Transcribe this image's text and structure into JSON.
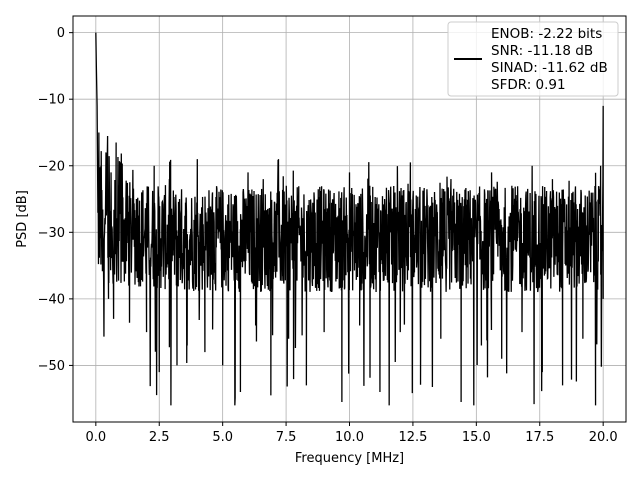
{
  "chart_data": {
    "type": "line",
    "title": "",
    "xlabel": "Frequency [MHz]",
    "ylabel": "PSD [dB]",
    "xlim": [
      -0.9,
      20.9
    ],
    "ylim": [
      -58.5,
      2.5
    ],
    "grid": true,
    "legend_position": "top-right",
    "x_ticks": [
      0,
      2.5,
      5,
      7.5,
      10,
      12.5,
      15,
      17.5,
      20
    ],
    "x_tick_labels": [
      "0.0",
      "2.5",
      "5.0",
      "7.5",
      "10.0",
      "12.5",
      "15.0",
      "17.5",
      "20.0"
    ],
    "y_ticks": [
      0,
      -10,
      -20,
      -30,
      -40,
      -50
    ],
    "y_tick_labels": [
      "0",
      "−10",
      "−20",
      "−30",
      "−40",
      "−50"
    ],
    "series": [
      {
        "color": "#000000",
        "note": "Noise-like PSD trace from 0 to 20 MHz; peak near 0 dB at 0 MHz, baseline around -30 dB, upper envelope ~-20 dB, dips to ~-55 dB, spike to ~-11 dB at 20 MHz",
        "x": [
          0.0,
          0.02,
          0.05,
          0.08,
          0.12,
          0.2,
          0.3,
          0.4,
          0.5,
          0.6,
          0.7,
          0.8,
          1.0,
          1.3,
          1.6,
          2.0,
          2.3,
          2.5,
          2.6,
          2.9,
          3.2,
          3.3,
          3.6,
          4.0,
          4.3,
          4.6,
          5.0,
          5.4,
          5.7,
          6.0,
          6.3,
          6.6,
          6.9,
          7.2,
          7.6,
          8.0,
          8.3,
          8.6,
          9.0,
          9.4,
          9.7,
          10.0,
          10.4,
          10.8,
          11.2,
          11.6,
          12.0,
          12.4,
          12.8,
          13.2,
          13.6,
          14.0,
          14.4,
          14.8,
          15.2,
          15.6,
          16.0,
          16.4,
          16.8,
          17.2,
          17.6,
          18.0,
          18.4,
          18.8,
          19.2,
          19.7,
          19.9,
          20.0
        ],
        "y": [
          0.0,
          -5.0,
          -11.0,
          -26.0,
          -15.0,
          -20.0,
          -35.0,
          -18.0,
          -40.0,
          -21.0,
          -43.0,
          -16.5,
          -30.0,
          -38.0,
          -25.0,
          -45.0,
          -20.0,
          -51.0,
          -32.0,
          -22.0,
          -50.0,
          -25.0,
          -47.0,
          -19.0,
          -48.0,
          -24.0,
          -50.0,
          -28.0,
          -54.0,
          -21.0,
          -44.0,
          -22.0,
          -54.5,
          -19.0,
          -46.0,
          -29.0,
          -53.0,
          -24.0,
          -45.0,
          -27.0,
          -55.5,
          -21.0,
          -44.0,
          -23.0,
          -54.0,
          -30.0,
          -45.0,
          -19.5,
          -48.0,
          -26.0,
          -46.0,
          -22.0,
          -55.5,
          -28.0,
          -47.0,
          -21.0,
          -49.0,
          -23.0,
          -45.0,
          -20.0,
          -51.0,
          -22.0,
          -53.0,
          -25.0,
          -46.0,
          -56.0,
          -20.0,
          -11.0
        ]
      }
    ],
    "legend": {
      "lines": [
        "ENOB: -2.22 bits",
        "SNR: -11.18 dB",
        "SINAD: -11.62 dB",
        "SFDR: 0.91"
      ]
    }
  }
}
